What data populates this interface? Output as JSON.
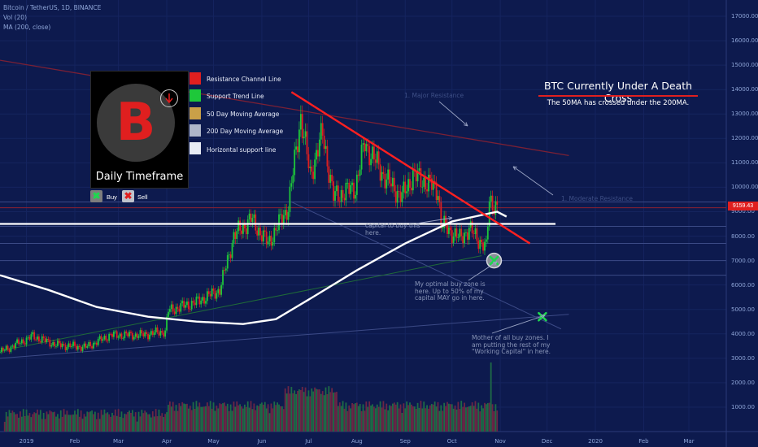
{
  "header": {
    "symbol_line": "Bitcoin / TetherUS, 1D, BINANCE",
    "volume_line": "Vol (20)",
    "ma_line": "MA (200, close)"
  },
  "legend": {
    "box_title": "Daily Timeframe",
    "logo_glyph": "B",
    "items": [
      {
        "label": "Resistance Channel Line",
        "color": "#e01f1f"
      },
      {
        "label": "Support Trend Line",
        "color": "#1ec83a"
      },
      {
        "label": "50 Day Moving Average",
        "color": "#c9a048"
      },
      {
        "label": "200 Day Moving Average",
        "color": "#aeb6c8"
      },
      {
        "label": "Horizontal support line",
        "color": "#e8ecf4"
      }
    ],
    "buy_label": "Buy",
    "sell_label": "Sell",
    "buy_glyph": "✖",
    "sell_glyph": "✖"
  },
  "callout": {
    "title": "BTC Currently Under A Death Cross",
    "subtitle": "The 50MA has crossed under the 200MA."
  },
  "notes": {
    "note1": [
      "capital to buy this",
      "here."
    ],
    "note2": [
      "My optimal buy zone is",
      "here. Up to 50% of my",
      "capital MAY go in here."
    ],
    "note3": [
      "Mother of all buy zones. I",
      "am putting the rest of my",
      "\"Working Capital\" in here."
    ]
  },
  "faint_labels": {
    "major_resistance": "1. Major Resistance",
    "moderate_resistance": "1. Moderate Resistance"
  },
  "price_tag": "9159.43",
  "colors": {
    "background": "#0d1a4e",
    "up_candle": "#1ec83a",
    "down_candle": "#e01f1f",
    "ma200": "#ffffff",
    "resistance": "#ff2020",
    "buy_marker": "#1ed84f"
  },
  "chart_data": {
    "type": "candlestick",
    "y_axis": {
      "ticks": [
        1000,
        2000,
        3000,
        4000,
        5000,
        6000,
        7000,
        8000,
        9000,
        10000,
        11000,
        12000,
        13000,
        14000,
        15000,
        16000,
        17000
      ],
      "tick_labels": [
        "1000.00",
        "2000.00",
        "3000.00",
        "4000.00",
        "5000.00",
        "6000.00",
        "7000.00",
        "8000.00",
        "9000.00",
        "10000.00",
        "11000.00",
        "12000.00",
        "13000.00",
        "14000.00",
        "15000.00",
        "16000.00",
        "17000.00"
      ],
      "range": [
        0,
        17400
      ]
    },
    "x_axis": {
      "labels": [
        {
          "text": "2019",
          "date": "2019-01-01"
        },
        {
          "text": "Feb",
          "date": "2019-02-01"
        },
        {
          "text": "Mar",
          "date": "2019-03-01"
        },
        {
          "text": "Apr",
          "date": "2019-04-01"
        },
        {
          "text": "May",
          "date": "2019-05-01"
        },
        {
          "text": "Jun",
          "date": "2019-06-01"
        },
        {
          "text": "Jul",
          "date": "2019-07-01"
        },
        {
          "text": "Aug",
          "date": "2019-08-01"
        },
        {
          "text": "Sep",
          "date": "2019-09-01"
        },
        {
          "text": "Oct",
          "date": "2019-10-01"
        },
        {
          "text": "Nov",
          "date": "2019-11-01"
        },
        {
          "text": "Dec",
          "date": "2019-12-01"
        },
        {
          "text": "2020",
          "date": "2020-01-01"
        },
        {
          "text": "Feb",
          "date": "2020-02-01"
        },
        {
          "text": "Mar",
          "date": "2020-03-01"
        }
      ],
      "range": [
        "2018-12-15",
        "2020-03-25"
      ]
    },
    "price_path": [
      [
        "2018-12-15",
        3250
      ],
      [
        "2019-01-05",
        3900
      ],
      [
        "2019-01-20",
        3550
      ],
      [
        "2019-02-08",
        3450
      ],
      [
        "2019-02-24",
        3950
      ],
      [
        "2019-03-15",
        3950
      ],
      [
        "2019-03-31",
        4100
      ],
      [
        "2019-04-02",
        4950
      ],
      [
        "2019-04-20",
        5300
      ],
      [
        "2019-05-05",
        5800
      ],
      [
        "2019-05-14",
        8000
      ],
      [
        "2019-05-25",
        8700
      ],
      [
        "2019-06-05",
        7700
      ],
      [
        "2019-06-18",
        9200
      ],
      [
        "2019-06-26",
        12900
      ],
      [
        "2019-07-02",
        10500
      ],
      [
        "2019-07-10",
        12200
      ],
      [
        "2019-07-17",
        9600
      ],
      [
        "2019-07-31",
        10000
      ],
      [
        "2019-08-06",
        11800
      ],
      [
        "2019-08-20",
        10300
      ],
      [
        "2019-08-30",
        9600
      ],
      [
        "2019-09-06",
        10500
      ],
      [
        "2019-09-22",
        9900
      ],
      [
        "2019-09-24",
        8500
      ],
      [
        "2019-10-06",
        7900
      ],
      [
        "2019-10-12",
        8300
      ],
      [
        "2019-10-23",
        7500
      ],
      [
        "2019-10-25",
        9500
      ],
      [
        "2019-10-30",
        9160
      ]
    ],
    "ma200": [
      [
        "2018-12-15",
        6400
      ],
      [
        "2019-01-15",
        5800
      ],
      [
        "2019-02-15",
        5100
      ],
      [
        "2019-03-20",
        4700
      ],
      [
        "2019-04-20",
        4500
      ],
      [
        "2019-05-20",
        4400
      ],
      [
        "2019-06-10",
        4600
      ],
      [
        "2019-07-01",
        5400
      ],
      [
        "2019-08-01",
        6600
      ],
      [
        "2019-09-01",
        7700
      ],
      [
        "2019-10-01",
        8600
      ],
      [
        "2019-10-30",
        9000
      ],
      [
        "2019-11-05",
        8800
      ]
    ],
    "lines": {
      "resistance_channel": [
        [
          "2019-06-20",
          13900
        ],
        [
          "2019-11-20",
          7700
        ]
      ],
      "upper_resistance": [
        [
          "2018-12-15",
          15200
        ],
        [
          "2019-12-15",
          11300
        ]
      ],
      "horizontal_support": 8500,
      "support_levels": [
        9400,
        8400,
        7700,
        7000,
        6400
      ],
      "red_horizontal": 9160
    },
    "buy_zones": [
      {
        "date": "2019-10-28",
        "price": 7000
      },
      {
        "date": "2019-11-28",
        "price": 4700
      }
    ],
    "last_price": 9159.43
  }
}
